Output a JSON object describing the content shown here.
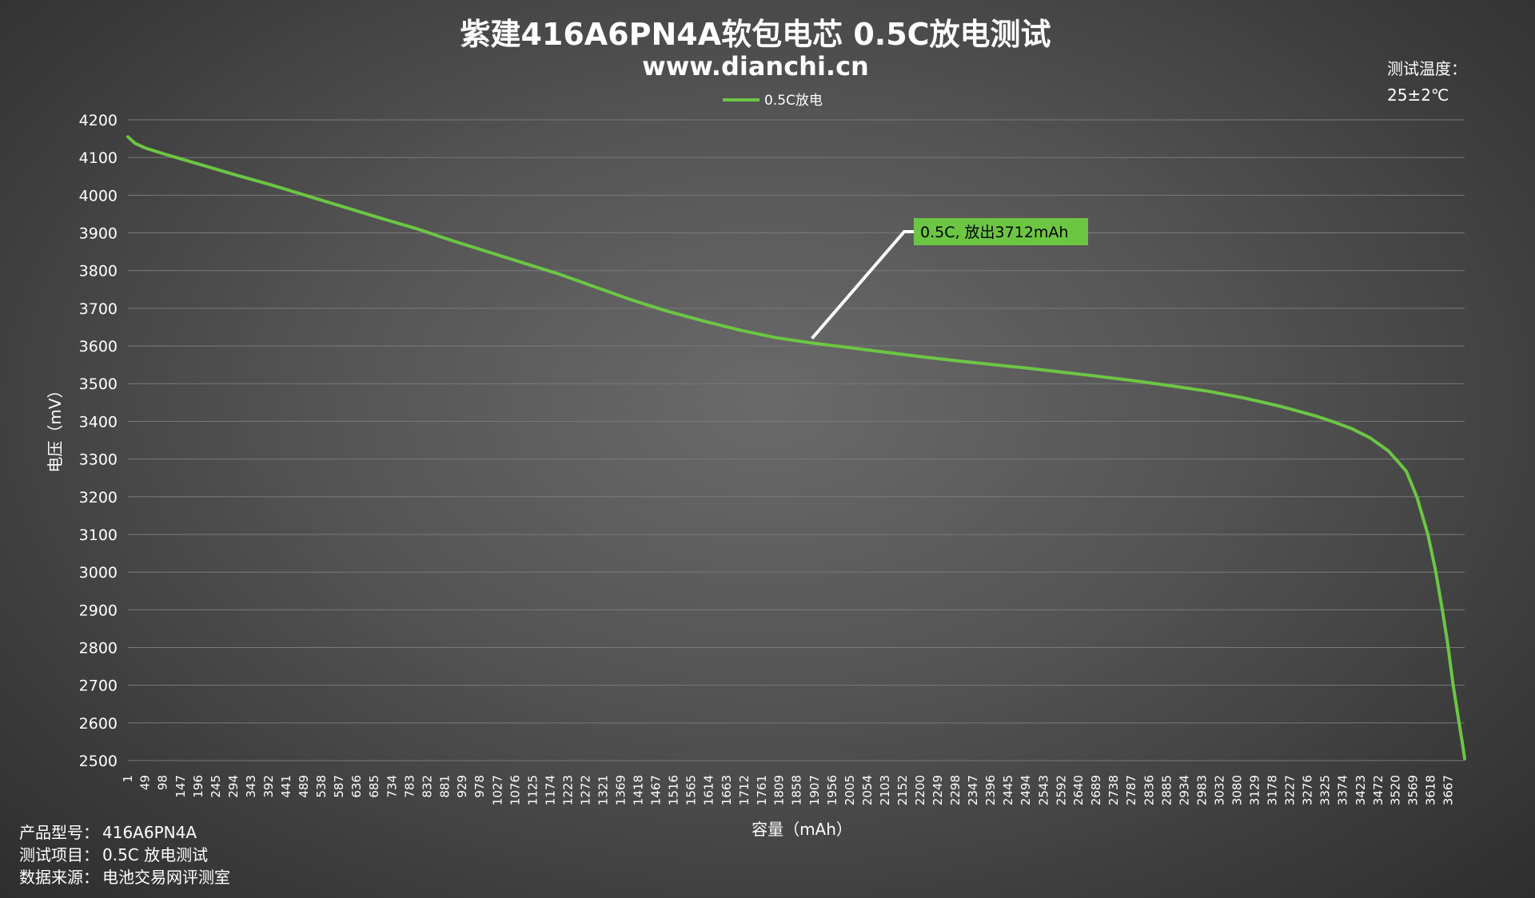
{
  "chart_data": {
    "type": "line",
    "title": "紫建416A6PN4A软包电芯 0.5C放电测试",
    "subtitle": "www.dianchi.cn",
    "xlabel": "容量（mAh）",
    "ylabel": "电压（mV）",
    "ylim": [
      2500,
      4200
    ],
    "yticks": [
      2500,
      2600,
      2700,
      2800,
      2900,
      3000,
      3100,
      3200,
      3300,
      3400,
      3500,
      3600,
      3700,
      3800,
      3900,
      4000,
      4100,
      4200
    ],
    "xlim": [
      1,
      3712
    ],
    "x_tick_labels": [
      "1",
      "49",
      "98",
      "147",
      "196",
      "245",
      "294",
      "343",
      "392",
      "441",
      "489",
      "538",
      "587",
      "636",
      "685",
      "734",
      "783",
      "832",
      "881",
      "929",
      "978",
      "1027",
      "1076",
      "1125",
      "1174",
      "1223",
      "1272",
      "1321",
      "1369",
      "1418",
      "1467",
      "1516",
      "1565",
      "1614",
      "1663",
      "1712",
      "1761",
      "1809",
      "1858",
      "1907",
      "1956",
      "2005",
      "2054",
      "2103",
      "2152",
      "2200",
      "2249",
      "2298",
      "2347",
      "2396",
      "2445",
      "2494",
      "2543",
      "2592",
      "2640",
      "2689",
      "2738",
      "2787",
      "2836",
      "2885",
      "2934",
      "2983",
      "3032",
      "3080",
      "3129",
      "3178",
      "3227",
      "3276",
      "3325",
      "3374",
      "3423",
      "3472",
      "3520",
      "3569",
      "3618",
      "3667"
    ],
    "grid": true,
    "legend_position": "top-center",
    "series": [
      {
        "name": "0.5C放电",
        "color": "#6cc644",
        "x": [
          1,
          20,
          50,
          100,
          200,
          300,
          400,
          500,
          600,
          700,
          800,
          900,
          1000,
          1100,
          1200,
          1300,
          1400,
          1500,
          1600,
          1700,
          1800,
          1900,
          2000,
          2100,
          2200,
          2300,
          2400,
          2500,
          2600,
          2700,
          2800,
          2900,
          3000,
          3100,
          3200,
          3300,
          3350,
          3400,
          3450,
          3500,
          3550,
          3580,
          3610,
          3630,
          3650,
          3665,
          3680,
          3690,
          3700,
          3706,
          3712
        ],
        "y": [
          4155,
          4138,
          4125,
          4110,
          4082,
          4054,
          4027,
          3998,
          3969,
          3940,
          3912,
          3880,
          3850,
          3820,
          3790,
          3756,
          3722,
          3692,
          3666,
          3642,
          3622,
          3608,
          3596,
          3584,
          3572,
          3561,
          3551,
          3541,
          3530,
          3519,
          3507,
          3494,
          3480,
          3462,
          3440,
          3414,
          3398,
          3380,
          3356,
          3322,
          3268,
          3198,
          3100,
          3010,
          2900,
          2810,
          2700,
          2640,
          2580,
          2545,
          2505
        ]
      }
    ],
    "annotations": [
      {
        "text": "0.5C, 放出3712mAh",
        "x": 1900,
        "y": 3620
      }
    ]
  },
  "test_temperature": {
    "label": "测试温度：",
    "value": "25±2℃"
  },
  "info": [
    {
      "label": "产品型号：",
      "value": "416A6PN4A"
    },
    {
      "label": "测试项目：",
      "value": "0.5C 放电测试"
    },
    {
      "label": "数据来源：",
      "value": "电池交易网评测室"
    }
  ]
}
